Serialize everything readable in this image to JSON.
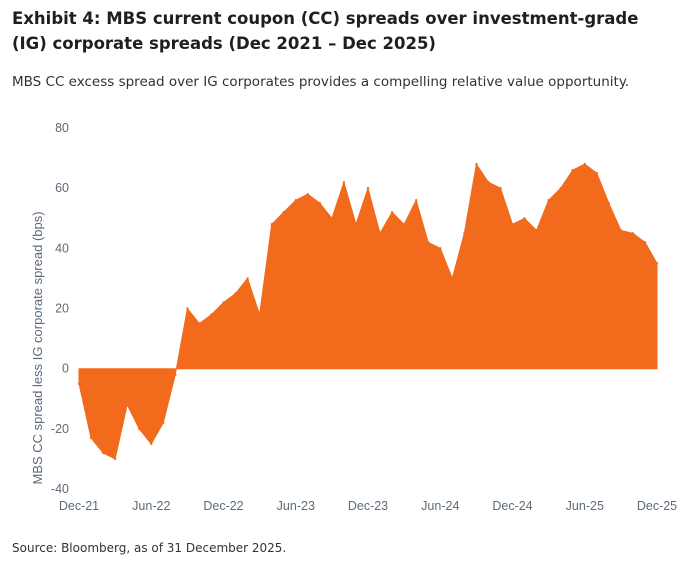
{
  "title": "Exhibit 4: MBS current coupon (CC) spreads over investment-grade (IG) corporate spreads (Dec 2021 – Dec 2025)",
  "subtitle": "MBS CC excess spread over IG corporates provides a compelling relative value opportunity.",
  "source": "Source: Bloomberg, as of 31 December 2025.",
  "colors": {
    "series": "#f26b1d",
    "tick_text": "#5b6b7a"
  },
  "chart_data": {
    "type": "area",
    "ylabel": "MBS CC spread less IG corporate spread (bps)",
    "xlabel": "",
    "ylim": [
      -40,
      80
    ],
    "yticks": [
      80,
      60,
      40,
      20,
      0,
      -20,
      -40
    ],
    "xlim": [
      "2021-12",
      "2025-12"
    ],
    "xticks": [
      "Dec-21",
      "Jun-22",
      "Dec-22",
      "Jun-23",
      "Dec-23",
      "Jun-24",
      "Dec-24",
      "Jun-25",
      "Dec-25"
    ],
    "grid": false,
    "legend": "none",
    "series": [
      {
        "x": [
          "2021-12",
          "2022-01",
          "2022-02",
          "2022-03",
          "2022-04",
          "2022-05",
          "2022-06",
          "2022-07",
          "2022-08",
          "2022-09",
          "2022-10",
          "2022-11",
          "2022-12",
          "2023-01",
          "2023-02",
          "2023-03",
          "2023-04",
          "2023-05",
          "2023-06",
          "2023-07",
          "2023-08",
          "2023-09",
          "2023-10",
          "2023-11",
          "2023-12",
          "2024-01",
          "2024-02",
          "2024-03",
          "2024-04",
          "2024-05",
          "2024-06",
          "2024-07",
          "2024-08",
          "2024-09",
          "2024-10",
          "2024-11",
          "2024-12",
          "2025-01",
          "2025-02",
          "2025-03",
          "2025-04",
          "2025-05",
          "2025-06",
          "2025-07",
          "2025-08",
          "2025-09",
          "2025-10",
          "2025-11",
          "2025-12"
        ],
        "values": [
          -5,
          -23,
          -28,
          -30,
          -12,
          -20,
          -25,
          -18,
          -2,
          20,
          15,
          18,
          22,
          25,
          30,
          18,
          48,
          52,
          56,
          58,
          55,
          50,
          62,
          48,
          60,
          45,
          52,
          48,
          56,
          42,
          40,
          30,
          45,
          68,
          62,
          60,
          48,
          50,
          46,
          56,
          60,
          66,
          68,
          65,
          55,
          46,
          45,
          42,
          35
        ]
      }
    ]
  }
}
